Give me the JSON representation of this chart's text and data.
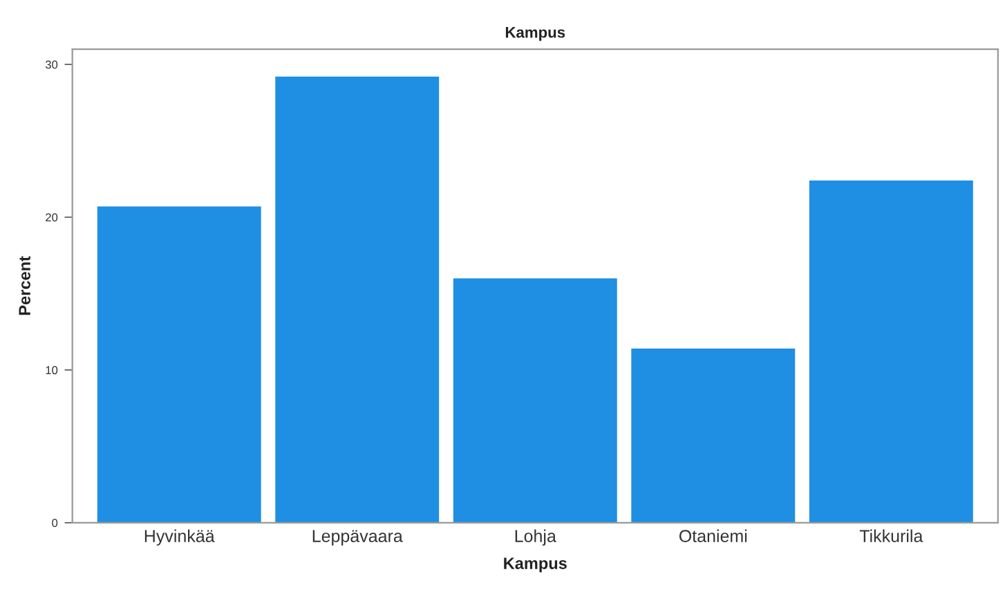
{
  "chart_data": {
    "type": "bar",
    "title": "Kampus",
    "xlabel": "Kampus",
    "ylabel": "Percent",
    "categories": [
      "Hyvinkää",
      "Leppävaara",
      "Lohja",
      "Otaniemi",
      "Tikkurila"
    ],
    "values": [
      20.7,
      29.2,
      16.0,
      11.4,
      22.4
    ],
    "color": "#1e8fe3",
    "ylim": [
      0,
      31
    ],
    "yticks": [
      0,
      10,
      20,
      30
    ],
    "grid": false
  }
}
